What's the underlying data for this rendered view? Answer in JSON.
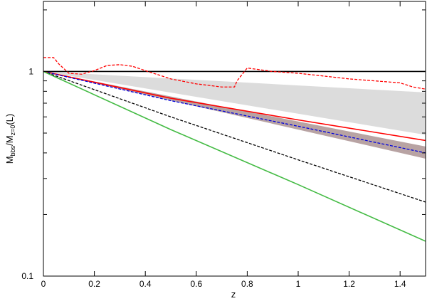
{
  "chart_data": {
    "type": "line",
    "title": "",
    "xlabel": "z",
    "ylabel": {
      "main": "M",
      "sub1": "bbs",
      "mid": "/M",
      "sub2": "z=0",
      "tail": "(L)"
    },
    "xlim": [
      0,
      1.5
    ],
    "ylim": [
      0.1,
      2.2
    ],
    "yscale": "log",
    "grid": false,
    "legend": "none",
    "x_ticks": [
      {
        "value": 0,
        "label": "0"
      },
      {
        "value": 0.2,
        "label": "0.2"
      },
      {
        "value": 0.4,
        "label": "0.4"
      },
      {
        "value": 0.6,
        "label": "0.6"
      },
      {
        "value": 0.8,
        "label": "0.8"
      },
      {
        "value": 1.0,
        "label": "1"
      },
      {
        "value": 1.2,
        "label": "1.2"
      },
      {
        "value": 1.4,
        "label": "1.4"
      }
    ],
    "y_major_ticks": [
      {
        "value": 0.1,
        "label": "0.1"
      },
      {
        "value": 1,
        "label": "1"
      }
    ],
    "y_minor_ticks": [
      0.2,
      0.3,
      0.4,
      0.5,
      0.6,
      0.7,
      0.8,
      0.9,
      2
    ],
    "bands": [
      {
        "color": "#dcdcdc",
        "x": [
          0,
          1.5
        ],
        "upper": [
          1.0,
          0.79
        ],
        "lower": [
          1.0,
          0.49
        ]
      },
      {
        "color": "#b8a3a3",
        "x": [
          0,
          1.5
        ],
        "upper": [
          1.0,
          0.43
        ],
        "lower": [
          1.0,
          0.375
        ]
      }
    ],
    "series": [
      {
        "color": "#000000",
        "dash": "solid",
        "x": [
          0,
          1.5
        ],
        "y": [
          1.0,
          1.0
        ]
      },
      {
        "color": "#ff0000",
        "dash": "solid",
        "x": [
          0,
          0.5,
          1.0,
          1.5
        ],
        "y": [
          1.0,
          0.74,
          0.58,
          0.46
        ]
      },
      {
        "color": "#0000dd",
        "dash": "dashed",
        "x": [
          0,
          0.5,
          1.0,
          1.5
        ],
        "y": [
          1.0,
          0.72,
          0.54,
          0.4
        ]
      },
      {
        "color": "#000000",
        "dash": "dashed",
        "x": [
          0,
          0.5,
          1.0,
          1.5
        ],
        "y": [
          1.0,
          0.6,
          0.37,
          0.23
        ]
      },
      {
        "color": "#44bb44",
        "dash": "solid",
        "x": [
          0,
          0.5,
          1.0,
          1.5
        ],
        "y": [
          1.0,
          0.52,
          0.28,
          0.148
        ]
      },
      {
        "color": "#ff0000",
        "dash": "dashed",
        "x": [
          0,
          0.04,
          0.06,
          0.1,
          0.15,
          0.2,
          0.25,
          0.3,
          0.35,
          0.4,
          0.5,
          0.6,
          0.7,
          0.75,
          0.76,
          0.8,
          0.9,
          1.0,
          1.1,
          1.2,
          1.3,
          1.4,
          1.45,
          1.5
        ],
        "y": [
          1.17,
          1.17,
          1.09,
          0.98,
          0.97,
          1.01,
          1.07,
          1.08,
          1.06,
          1.01,
          0.92,
          0.87,
          0.84,
          0.84,
          0.9,
          1.04,
          1.0,
          0.98,
          0.95,
          0.92,
          0.9,
          0.88,
          0.84,
          0.82
        ]
      }
    ]
  }
}
